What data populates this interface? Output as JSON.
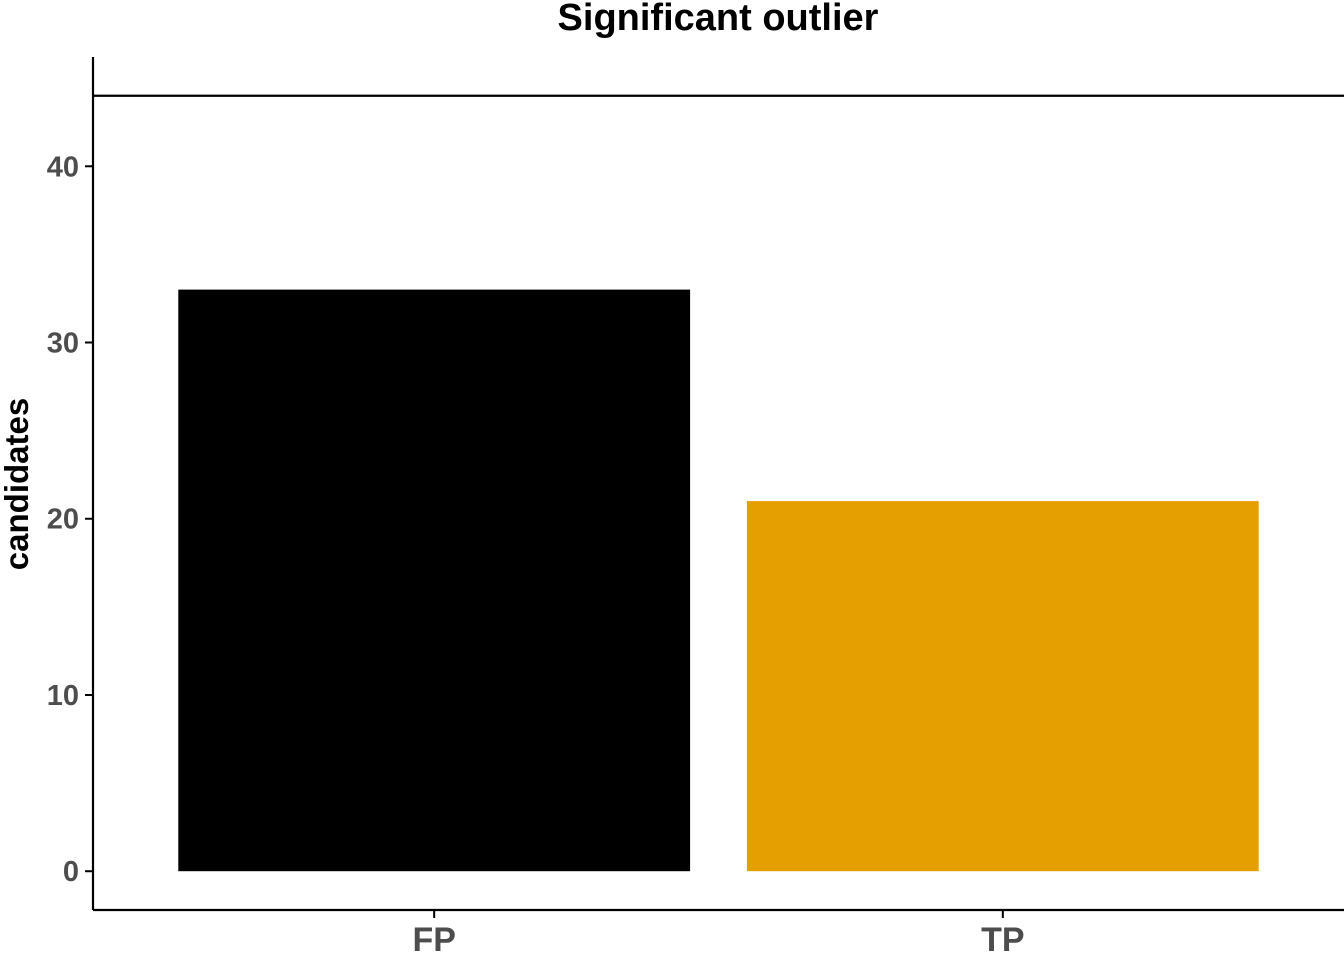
{
  "chart_data": {
    "type": "bar",
    "title": "Significant outlier",
    "xlabel": "",
    "ylabel": "candidates",
    "categories": [
      "FP",
      "TP"
    ],
    "values": [
      33,
      21
    ],
    "colors": [
      "#000000",
      "#e69f00"
    ],
    "ylim": [
      -2.2,
      46.2
    ],
    "yticks": [
      0,
      10,
      20,
      30,
      40
    ],
    "reference_line_y": 44,
    "grid": false,
    "legend": "none"
  }
}
